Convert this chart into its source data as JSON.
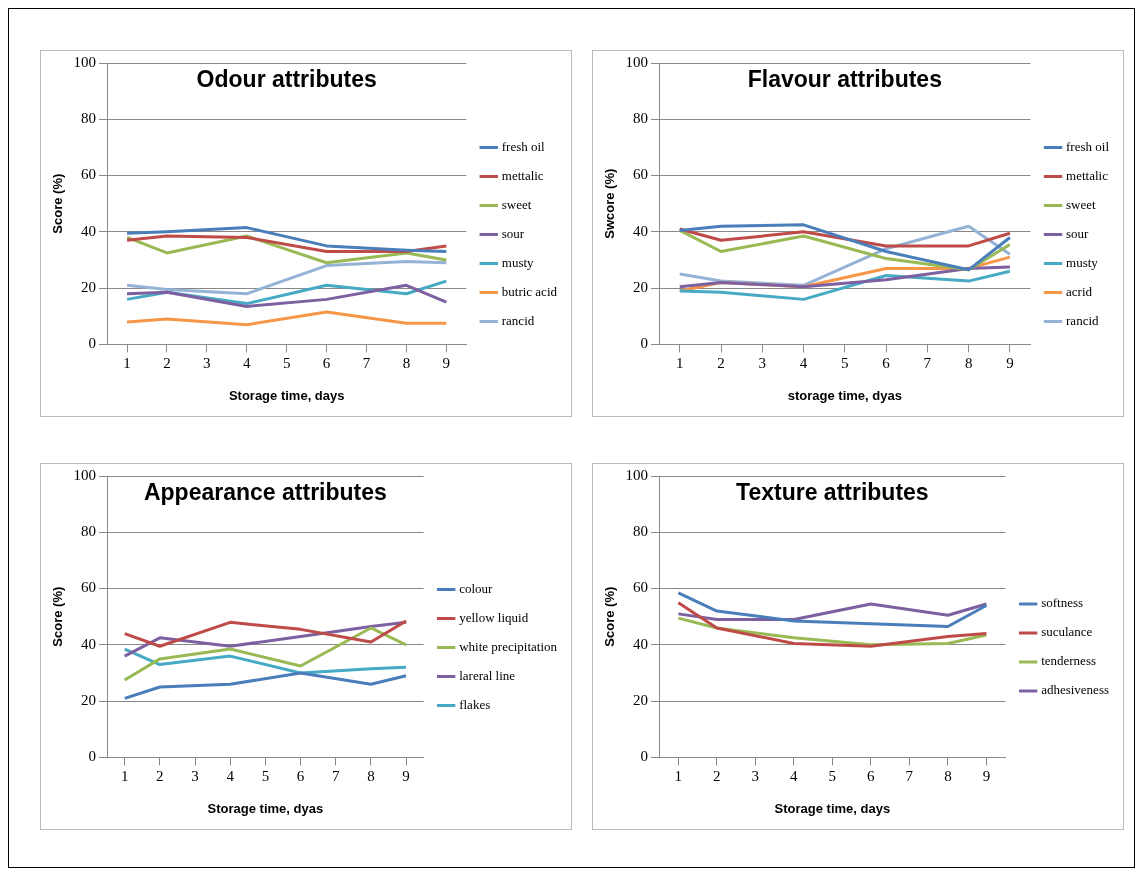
{
  "chart_data": [
    {
      "type": "line",
      "title": "Odour attributes",
      "xlabel": "Storage time, days",
      "ylabel": "Score (%)",
      "x": [
        1,
        2,
        4,
        6,
        8,
        9
      ],
      "xlim": [
        0.5,
        9.5
      ],
      "xticks": [
        1,
        2,
        3,
        4,
        5,
        6,
        7,
        8,
        9
      ],
      "ylim": [
        0,
        100
      ],
      "yticks": [
        0,
        20,
        40,
        60,
        80,
        100
      ],
      "grid": "y",
      "legend": "right",
      "series": [
        {
          "name": "fresh oil",
          "color": "#4a7ebb",
          "values": [
            39.5,
            40,
            41.5,
            35,
            33.5,
            33
          ]
        },
        {
          "name": "mettalic",
          "color": "#be4b48",
          "values": [
            37,
            38.5,
            38,
            33,
            33,
            35
          ]
        },
        {
          "name": "sweet",
          "color": "#98b954",
          "values": [
            38,
            32.5,
            38.5,
            29,
            32.5,
            30
          ]
        },
        {
          "name": "sour",
          "color": "#7d60a0",
          "values": [
            18,
            18.5,
            13.5,
            16,
            21,
            15
          ]
        },
        {
          "name": "musty",
          "color": "#46aac5",
          "values": [
            16,
            18.5,
            14.5,
            21,
            18,
            22.5
          ]
        },
        {
          "name": "butric acid",
          "color": "#f79646",
          "values": [
            8,
            9,
            7,
            11.5,
            7.5,
            7.5
          ]
        },
        {
          "name": "rancid",
          "color": "#95b3d7",
          "values": [
            21,
            19.5,
            18,
            28,
            29.5,
            29
          ]
        }
      ]
    },
    {
      "type": "line",
      "title": "Flavour attributes",
      "xlabel": "storage time, dyas",
      "ylabel": "Swcore (%)",
      "x": [
        1,
        2,
        4,
        6,
        8,
        9
      ],
      "xlim": [
        0.5,
        9.5
      ],
      "xticks": [
        1,
        2,
        3,
        4,
        5,
        6,
        7,
        8,
        9
      ],
      "ylim": [
        0,
        100
      ],
      "yticks": [
        0,
        20,
        40,
        60,
        80,
        100
      ],
      "grid": "y",
      "legend": "right",
      "series": [
        {
          "name": "fresh oil",
          "color": "#4a7ebb",
          "values": [
            40.5,
            42,
            42.5,
            33,
            26.5,
            38
          ]
        },
        {
          "name": "mettalic",
          "color": "#be4b48",
          "values": [
            41,
            37,
            40,
            35,
            35,
            39.5
          ]
        },
        {
          "name": "sweet",
          "color": "#98b954",
          "values": [
            40.5,
            33,
            38.5,
            30.5,
            26.5,
            35.5
          ]
        },
        {
          "name": "sour",
          "color": "#7d60a0",
          "values": [
            20.5,
            22,
            20.5,
            23,
            27,
            27.5
          ]
        },
        {
          "name": "musty",
          "color": "#46aac5",
          "values": [
            19,
            18.5,
            16,
            24.5,
            22.5,
            26
          ]
        },
        {
          "name": "acrid",
          "color": "#f79646",
          "values": [
            19,
            22,
            20.5,
            27,
            27,
            31
          ]
        },
        {
          "name": "rancid",
          "color": "#95b3d7",
          "values": [
            25,
            22.5,
            21,
            34,
            42,
            32
          ]
        }
      ]
    },
    {
      "type": "line",
      "title": "Appearance attributes",
      "xlabel": "Storage time, dyas",
      "ylabel": "Score (%)",
      "x": [
        1,
        2,
        4,
        6,
        8,
        9
      ],
      "xlim": [
        0.5,
        9.5
      ],
      "xticks": [
        1,
        2,
        3,
        4,
        5,
        6,
        7,
        8,
        9
      ],
      "ylim": [
        0,
        100
      ],
      "yticks": [
        0,
        20,
        40,
        60,
        80,
        100
      ],
      "grid": "y",
      "legend": "right",
      "series": [
        {
          "name": "colour",
          "color": "#4a7ebb",
          "values": [
            21,
            25,
            26,
            30,
            26,
            29
          ]
        },
        {
          "name": "yellow liquid",
          "color": "#be4b48",
          "values": [
            44,
            39.5,
            48,
            45.5,
            41,
            48.5
          ]
        },
        {
          "name": "white precipitation",
          "color": "#98b954",
          "values": [
            27.5,
            35,
            38.5,
            32.5,
            46,
            40
          ]
        },
        {
          "name": "lareral line",
          "color": "#7d60a0",
          "values": [
            36,
            42.5,
            39.5,
            43,
            46.5,
            48
          ]
        },
        {
          "name": "flakes",
          "color": "#46aac5",
          "values": [
            38.5,
            33,
            36,
            30,
            31.5,
            32
          ]
        }
      ]
    },
    {
      "type": "line",
      "title": "Texture attributes",
      "xlabel": "Storage time, days",
      "ylabel": "Score (%)",
      "x": [
        1,
        2,
        4,
        6,
        8,
        9
      ],
      "xlim": [
        0.5,
        9.5
      ],
      "xticks": [
        1,
        2,
        3,
        4,
        5,
        6,
        7,
        8,
        9
      ],
      "ylim": [
        0,
        100
      ],
      "yticks": [
        0,
        20,
        40,
        60,
        80,
        100
      ],
      "grid": "y",
      "legend": "right",
      "series": [
        {
          "name": "softness",
          "color": "#4a7ebb",
          "values": [
            58.5,
            52,
            48.5,
            47.5,
            46.5,
            54
          ]
        },
        {
          "name": "suculance",
          "color": "#be4b48",
          "values": [
            55,
            46,
            40.5,
            39.5,
            43,
            44
          ]
        },
        {
          "name": "tenderness",
          "color": "#98b954",
          "values": [
            49.5,
            46,
            42.5,
            40,
            40.5,
            43.5
          ]
        },
        {
          "name": "adhesiveness",
          "color": "#7d60a0",
          "values": [
            51,
            49,
            49,
            54.5,
            50.5,
            54.5
          ]
        }
      ]
    }
  ]
}
